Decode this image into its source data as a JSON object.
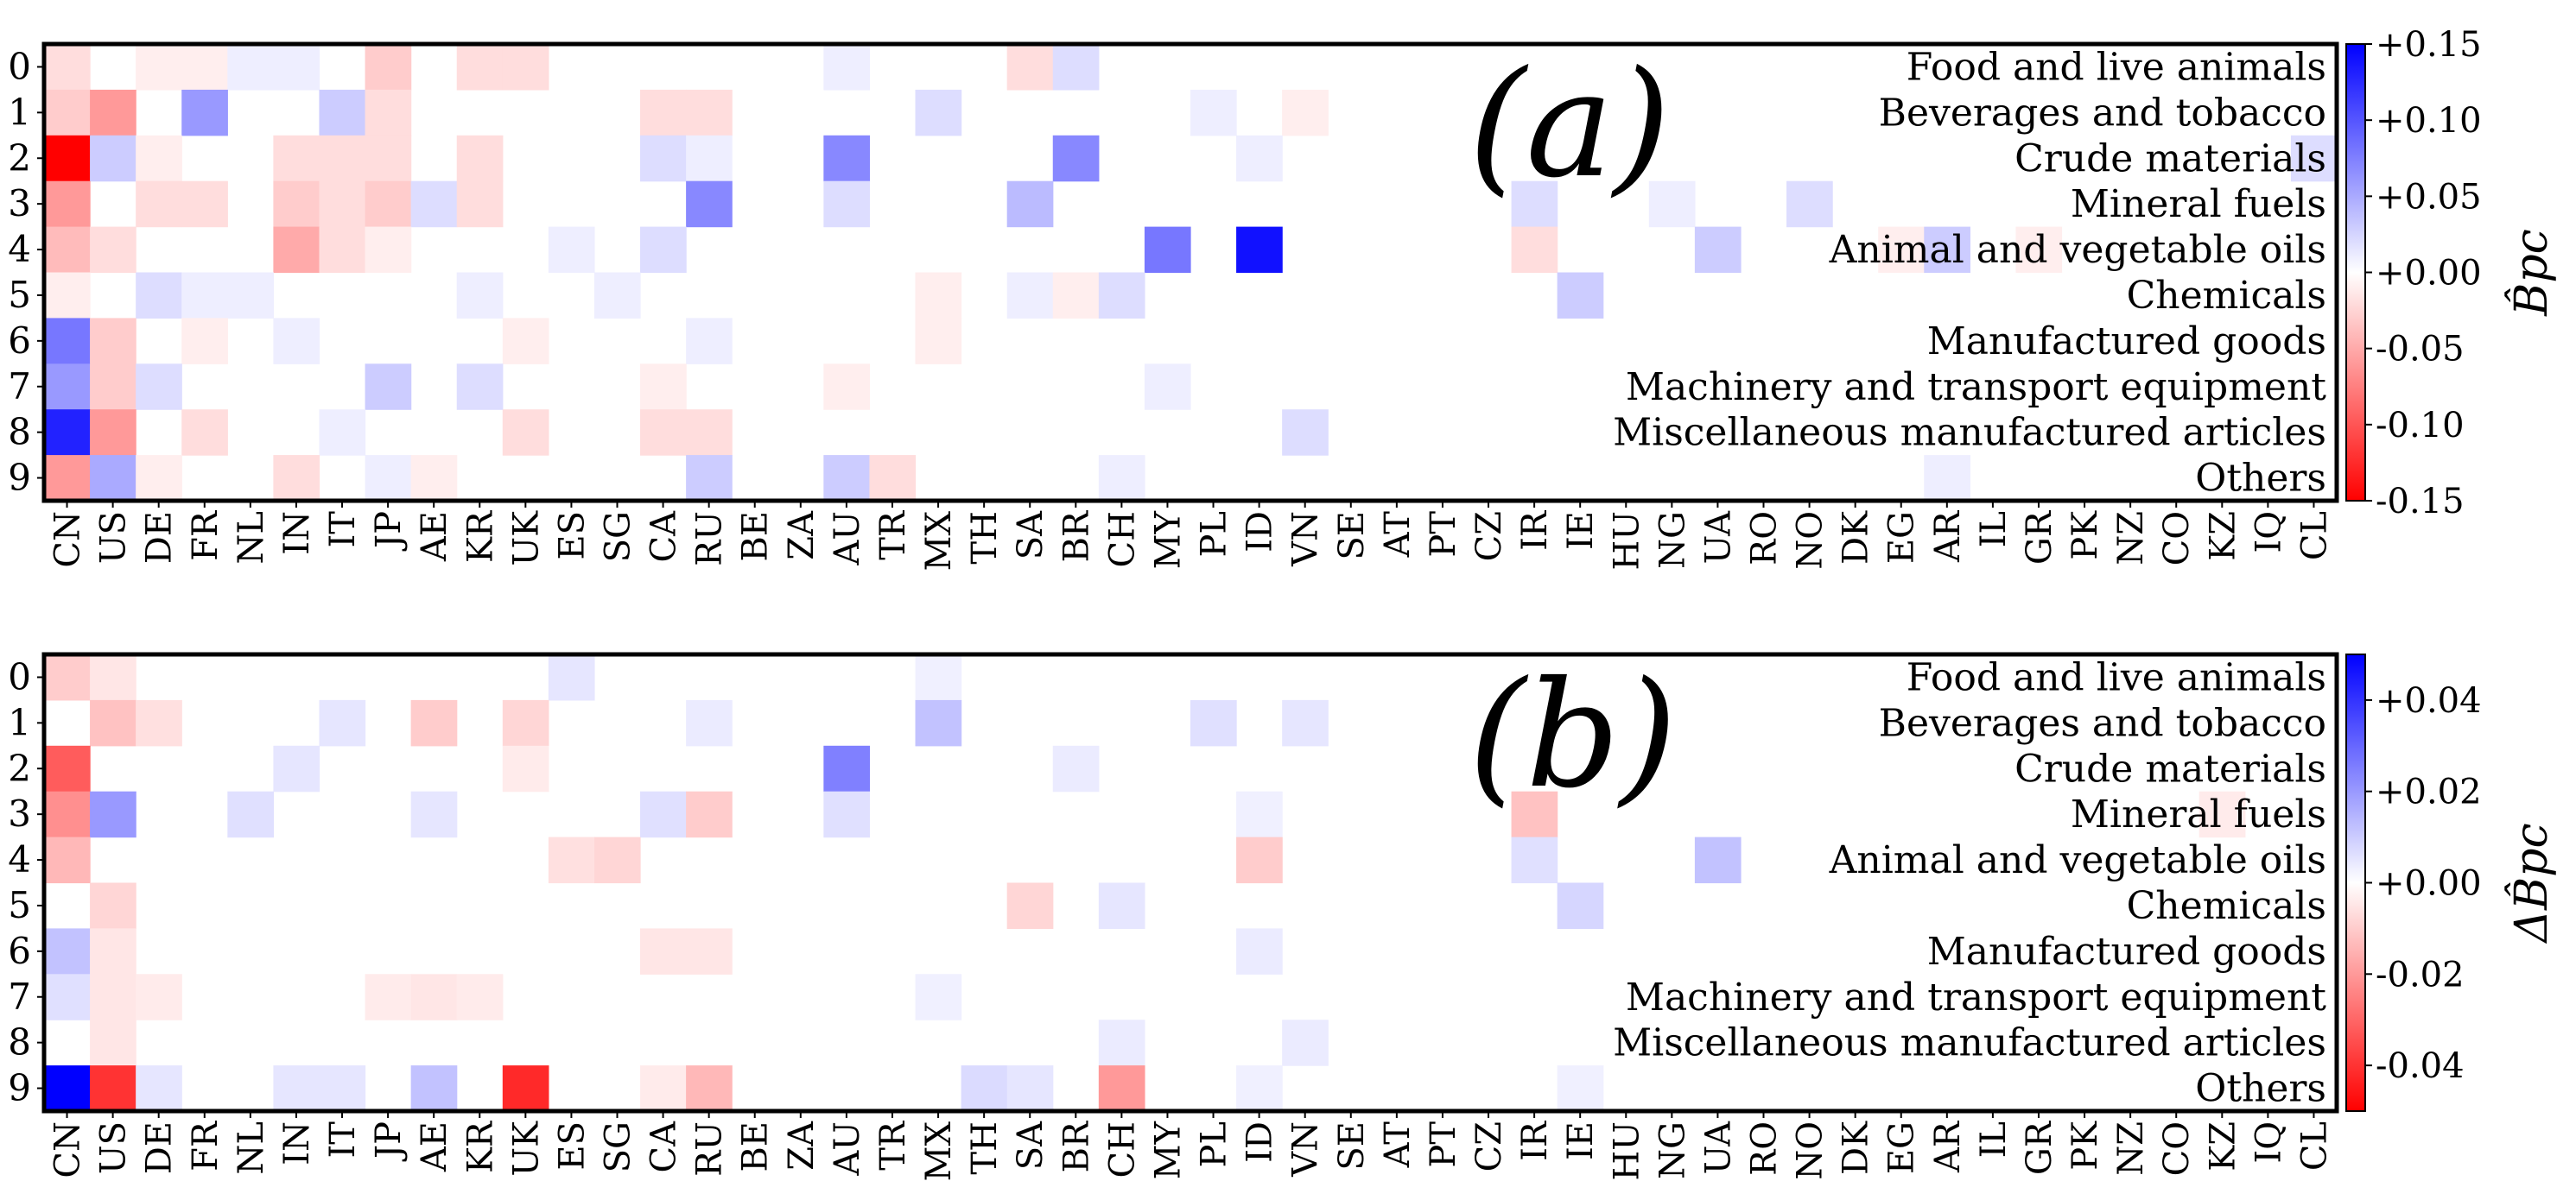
{
  "countries": [
    "CN",
    "US",
    "DE",
    "FR",
    "NL",
    "IN",
    "IT",
    "JP",
    "AE",
    "KR",
    "UK",
    "ES",
    "SG",
    "CA",
    "RU",
    "BE",
    "ZA",
    "AU",
    "TR",
    "MX",
    "TH",
    "SA",
    "BR",
    "CH",
    "MY",
    "PL",
    "ID",
    "VN",
    "SE",
    "AT",
    "PT",
    "CZ",
    "IR",
    "IE",
    "HU",
    "NG",
    "UA",
    "RO",
    "NO",
    "DK",
    "EG",
    "AR",
    "IL",
    "GR",
    "PK",
    "NZ",
    "CO",
    "KZ",
    "IQ",
    "CL"
  ],
  "row_ticks": [
    "0",
    "1",
    "2",
    "3",
    "4",
    "5",
    "6",
    "7",
    "8",
    "9"
  ],
  "categories": [
    "Food and live animals",
    "Beverages and tobacco",
    "Crude materials",
    "Mineral fuels",
    "Animal and vegetable oils",
    "Chemicals",
    "Manufactured goods",
    "Machinery and transport equipment",
    "Miscellaneous manufactured articles",
    "Others"
  ],
  "colors": {
    "negative": "#ff0000",
    "zero": "#ffffff",
    "positive": "#0000ff"
  },
  "chart_data": [
    {
      "type": "heatmap",
      "panel_label": "(a)",
      "colorbar_label": "B̂pc",
      "vlim": [
        -0.15,
        0.15
      ],
      "colorbar_ticks": [
        "+0.15",
        "+0.10",
        "+0.05",
        "+0.00",
        "-0.05",
        "-0.10",
        "-0.15"
      ],
      "colorbar_tick_values": [
        0.15,
        0.1,
        0.05,
        0.0,
        -0.05,
        -0.1,
        -0.15
      ],
      "cells": [
        {
          "r": 0,
          "c": 0,
          "v": -0.02
        },
        {
          "r": 0,
          "c": 2,
          "v": -0.01
        },
        {
          "r": 0,
          "c": 3,
          "v": -0.01
        },
        {
          "r": 0,
          "c": 4,
          "v": 0.01
        },
        {
          "r": 0,
          "c": 5,
          "v": 0.01
        },
        {
          "r": 0,
          "c": 7,
          "v": -0.03
        },
        {
          "r": 0,
          "c": 9,
          "v": -0.02
        },
        {
          "r": 0,
          "c": 10,
          "v": -0.02
        },
        {
          "r": 0,
          "c": 17,
          "v": 0.01
        },
        {
          "r": 0,
          "c": 21,
          "v": -0.02
        },
        {
          "r": 0,
          "c": 22,
          "v": 0.02
        },
        {
          "r": 1,
          "c": 0,
          "v": -0.03
        },
        {
          "r": 1,
          "c": 1,
          "v": -0.06
        },
        {
          "r": 1,
          "c": 3,
          "v": 0.06
        },
        {
          "r": 1,
          "c": 6,
          "v": 0.03
        },
        {
          "r": 1,
          "c": 7,
          "v": -0.02
        },
        {
          "r": 1,
          "c": 13,
          "v": -0.02
        },
        {
          "r": 1,
          "c": 14,
          "v": -0.02
        },
        {
          "r": 1,
          "c": 19,
          "v": 0.02
        },
        {
          "r": 1,
          "c": 25,
          "v": 0.01
        },
        {
          "r": 1,
          "c": 27,
          "v": -0.01
        },
        {
          "r": 2,
          "c": 0,
          "v": -0.15
        },
        {
          "r": 2,
          "c": 1,
          "v": 0.03
        },
        {
          "r": 2,
          "c": 2,
          "v": -0.01
        },
        {
          "r": 2,
          "c": 5,
          "v": -0.02
        },
        {
          "r": 2,
          "c": 6,
          "v": -0.02
        },
        {
          "r": 2,
          "c": 7,
          "v": -0.02
        },
        {
          "r": 2,
          "c": 9,
          "v": -0.02
        },
        {
          "r": 2,
          "c": 13,
          "v": 0.02
        },
        {
          "r": 2,
          "c": 14,
          "v": 0.01
        },
        {
          "r": 2,
          "c": 17,
          "v": 0.07
        },
        {
          "r": 2,
          "c": 22,
          "v": 0.07
        },
        {
          "r": 2,
          "c": 26,
          "v": 0.01
        },
        {
          "r": 2,
          "c": 49,
          "v": 0.02
        },
        {
          "r": 3,
          "c": 0,
          "v": -0.06
        },
        {
          "r": 3,
          "c": 2,
          "v": -0.02
        },
        {
          "r": 3,
          "c": 3,
          "v": -0.02
        },
        {
          "r": 3,
          "c": 5,
          "v": -0.03
        },
        {
          "r": 3,
          "c": 6,
          "v": -0.02
        },
        {
          "r": 3,
          "c": 7,
          "v": -0.03
        },
        {
          "r": 3,
          "c": 8,
          "v": 0.02
        },
        {
          "r": 3,
          "c": 9,
          "v": -0.02
        },
        {
          "r": 3,
          "c": 14,
          "v": 0.07
        },
        {
          "r": 3,
          "c": 17,
          "v": 0.02
        },
        {
          "r": 3,
          "c": 21,
          "v": 0.04
        },
        {
          "r": 3,
          "c": 32,
          "v": 0.02
        },
        {
          "r": 3,
          "c": 35,
          "v": 0.01
        },
        {
          "r": 3,
          "c": 38,
          "v": 0.02
        },
        {
          "r": 4,
          "c": 0,
          "v": -0.04
        },
        {
          "r": 4,
          "c": 1,
          "v": -0.02
        },
        {
          "r": 4,
          "c": 5,
          "v": -0.05
        },
        {
          "r": 4,
          "c": 6,
          "v": -0.02
        },
        {
          "r": 4,
          "c": 7,
          "v": -0.01
        },
        {
          "r": 4,
          "c": 11,
          "v": 0.01
        },
        {
          "r": 4,
          "c": 13,
          "v": 0.02
        },
        {
          "r": 4,
          "c": 24,
          "v": 0.08
        },
        {
          "r": 4,
          "c": 26,
          "v": 0.14
        },
        {
          "r": 4,
          "c": 32,
          "v": -0.02
        },
        {
          "r": 4,
          "c": 36,
          "v": 0.03
        },
        {
          "r": 4,
          "c": 40,
          "v": -0.01
        },
        {
          "r": 4,
          "c": 41,
          "v": 0.03
        },
        {
          "r": 4,
          "c": 43,
          "v": -0.01
        },
        {
          "r": 5,
          "c": 0,
          "v": -0.01
        },
        {
          "r": 5,
          "c": 2,
          "v": 0.02
        },
        {
          "r": 5,
          "c": 3,
          "v": 0.01
        },
        {
          "r": 5,
          "c": 4,
          "v": 0.01
        },
        {
          "r": 5,
          "c": 9,
          "v": 0.01
        },
        {
          "r": 5,
          "c": 12,
          "v": 0.01
        },
        {
          "r": 5,
          "c": 19,
          "v": -0.01
        },
        {
          "r": 5,
          "c": 21,
          "v": 0.01
        },
        {
          "r": 5,
          "c": 22,
          "v": -0.01
        },
        {
          "r": 5,
          "c": 23,
          "v": 0.02
        },
        {
          "r": 5,
          "c": 33,
          "v": 0.03
        },
        {
          "r": 6,
          "c": 0,
          "v": 0.08
        },
        {
          "r": 6,
          "c": 1,
          "v": -0.03
        },
        {
          "r": 6,
          "c": 3,
          "v": -0.01
        },
        {
          "r": 6,
          "c": 5,
          "v": 0.01
        },
        {
          "r": 6,
          "c": 10,
          "v": -0.01
        },
        {
          "r": 6,
          "c": 14,
          "v": 0.01
        },
        {
          "r": 6,
          "c": 19,
          "v": -0.01
        },
        {
          "r": 7,
          "c": 0,
          "v": 0.06
        },
        {
          "r": 7,
          "c": 1,
          "v": -0.03
        },
        {
          "r": 7,
          "c": 2,
          "v": 0.02
        },
        {
          "r": 7,
          "c": 7,
          "v": 0.03
        },
        {
          "r": 7,
          "c": 9,
          "v": 0.02
        },
        {
          "r": 7,
          "c": 13,
          "v": -0.01
        },
        {
          "r": 7,
          "c": 17,
          "v": -0.01
        },
        {
          "r": 7,
          "c": 24,
          "v": 0.01
        },
        {
          "r": 8,
          "c": 0,
          "v": 0.13
        },
        {
          "r": 8,
          "c": 1,
          "v": -0.06
        },
        {
          "r": 8,
          "c": 3,
          "v": -0.02
        },
        {
          "r": 8,
          "c": 6,
          "v": 0.01
        },
        {
          "r": 8,
          "c": 10,
          "v": -0.02
        },
        {
          "r": 8,
          "c": 13,
          "v": -0.02
        },
        {
          "r": 8,
          "c": 14,
          "v": -0.02
        },
        {
          "r": 8,
          "c": 27,
          "v": 0.02
        },
        {
          "r": 9,
          "c": 0,
          "v": -0.06
        },
        {
          "r": 9,
          "c": 1,
          "v": 0.05
        },
        {
          "r": 9,
          "c": 2,
          "v": -0.01
        },
        {
          "r": 9,
          "c": 5,
          "v": -0.02
        },
        {
          "r": 9,
          "c": 7,
          "v": 0.01
        },
        {
          "r": 9,
          "c": 8,
          "v": -0.01
        },
        {
          "r": 9,
          "c": 14,
          "v": 0.03
        },
        {
          "r": 9,
          "c": 17,
          "v": 0.03
        },
        {
          "r": 9,
          "c": 18,
          "v": -0.02
        },
        {
          "r": 9,
          "c": 23,
          "v": 0.01
        },
        {
          "r": 9,
          "c": 41,
          "v": 0.01
        }
      ]
    },
    {
      "type": "heatmap",
      "panel_label": "(b)",
      "colorbar_label": "ΔB̂pc",
      "vlim": [
        -0.05,
        0.05
      ],
      "colorbar_ticks": [
        "+0.04",
        "+0.02",
        "+0.00",
        "-0.02",
        "-0.04"
      ],
      "colorbar_tick_values": [
        0.04,
        0.02,
        0.0,
        -0.02,
        -0.04
      ],
      "cells": [
        {
          "r": 0,
          "c": 0,
          "v": -0.01
        },
        {
          "r": 0,
          "c": 1,
          "v": -0.005
        },
        {
          "r": 0,
          "c": 11,
          "v": 0.005
        },
        {
          "r": 0,
          "c": 19,
          "v": 0.003
        },
        {
          "r": 1,
          "c": 1,
          "v": -0.012
        },
        {
          "r": 1,
          "c": 2,
          "v": -0.006
        },
        {
          "r": 1,
          "c": 6,
          "v": 0.005
        },
        {
          "r": 1,
          "c": 8,
          "v": -0.01
        },
        {
          "r": 1,
          "c": 10,
          "v": -0.008
        },
        {
          "r": 1,
          "c": 14,
          "v": 0.004
        },
        {
          "r": 1,
          "c": 19,
          "v": 0.012
        },
        {
          "r": 1,
          "c": 25,
          "v": 0.006
        },
        {
          "r": 1,
          "c": 27,
          "v": 0.005
        },
        {
          "r": 2,
          "c": 0,
          "v": -0.032
        },
        {
          "r": 2,
          "c": 5,
          "v": 0.005
        },
        {
          "r": 2,
          "c": 10,
          "v": -0.004
        },
        {
          "r": 2,
          "c": 17,
          "v": 0.025
        },
        {
          "r": 2,
          "c": 22,
          "v": 0.004
        },
        {
          "r": 3,
          "c": 0,
          "v": -0.022
        },
        {
          "r": 3,
          "c": 1,
          "v": 0.02
        },
        {
          "r": 3,
          "c": 4,
          "v": 0.006
        },
        {
          "r": 3,
          "c": 8,
          "v": 0.005
        },
        {
          "r": 3,
          "c": 13,
          "v": 0.006
        },
        {
          "r": 3,
          "c": 14,
          "v": -0.01
        },
        {
          "r": 3,
          "c": 17,
          "v": 0.006
        },
        {
          "r": 3,
          "c": 26,
          "v": 0.003
        },
        {
          "r": 3,
          "c": 32,
          "v": -0.012
        },
        {
          "r": 3,
          "c": 47,
          "v": -0.004
        },
        {
          "r": 4,
          "c": 0,
          "v": -0.014
        },
        {
          "r": 4,
          "c": 11,
          "v": -0.006
        },
        {
          "r": 4,
          "c": 12,
          "v": -0.008
        },
        {
          "r": 4,
          "c": 26,
          "v": -0.01
        },
        {
          "r": 4,
          "c": 32,
          "v": 0.006
        },
        {
          "r": 4,
          "c": 36,
          "v": 0.012
        },
        {
          "r": 5,
          "c": 1,
          "v": -0.008
        },
        {
          "r": 5,
          "c": 21,
          "v": -0.008
        },
        {
          "r": 5,
          "c": 23,
          "v": 0.005
        },
        {
          "r": 5,
          "c": 33,
          "v": 0.008
        },
        {
          "r": 6,
          "c": 0,
          "v": 0.012
        },
        {
          "r": 6,
          "c": 1,
          "v": -0.005
        },
        {
          "r": 6,
          "c": 13,
          "v": -0.005
        },
        {
          "r": 6,
          "c": 14,
          "v": -0.005
        },
        {
          "r": 6,
          "c": 26,
          "v": 0.004
        },
        {
          "r": 7,
          "c": 0,
          "v": 0.006
        },
        {
          "r": 7,
          "c": 1,
          "v": -0.005
        },
        {
          "r": 7,
          "c": 2,
          "v": -0.004
        },
        {
          "r": 7,
          "c": 7,
          "v": -0.004
        },
        {
          "r": 7,
          "c": 8,
          "v": -0.005
        },
        {
          "r": 7,
          "c": 9,
          "v": -0.004
        },
        {
          "r": 7,
          "c": 19,
          "v": 0.003
        },
        {
          "r": 8,
          "c": 1,
          "v": -0.005
        },
        {
          "r": 8,
          "c": 23,
          "v": 0.004
        },
        {
          "r": 8,
          "c": 27,
          "v": 0.004
        },
        {
          "r": 9,
          "c": 0,
          "v": 0.05
        },
        {
          "r": 9,
          "c": 1,
          "v": -0.04
        },
        {
          "r": 9,
          "c": 2,
          "v": 0.005
        },
        {
          "r": 9,
          "c": 5,
          "v": 0.005
        },
        {
          "r": 9,
          "c": 6,
          "v": 0.005
        },
        {
          "r": 9,
          "c": 8,
          "v": 0.012
        },
        {
          "r": 9,
          "c": 10,
          "v": -0.042
        },
        {
          "r": 9,
          "c": 13,
          "v": -0.004
        },
        {
          "r": 9,
          "c": 14,
          "v": -0.014
        },
        {
          "r": 9,
          "c": 20,
          "v": 0.007
        },
        {
          "r": 9,
          "c": 21,
          "v": 0.005
        },
        {
          "r": 9,
          "c": 23,
          "v": -0.02
        },
        {
          "r": 9,
          "c": 26,
          "v": 0.003
        },
        {
          "r": 9,
          "c": 33,
          "v": 0.003
        }
      ]
    }
  ]
}
